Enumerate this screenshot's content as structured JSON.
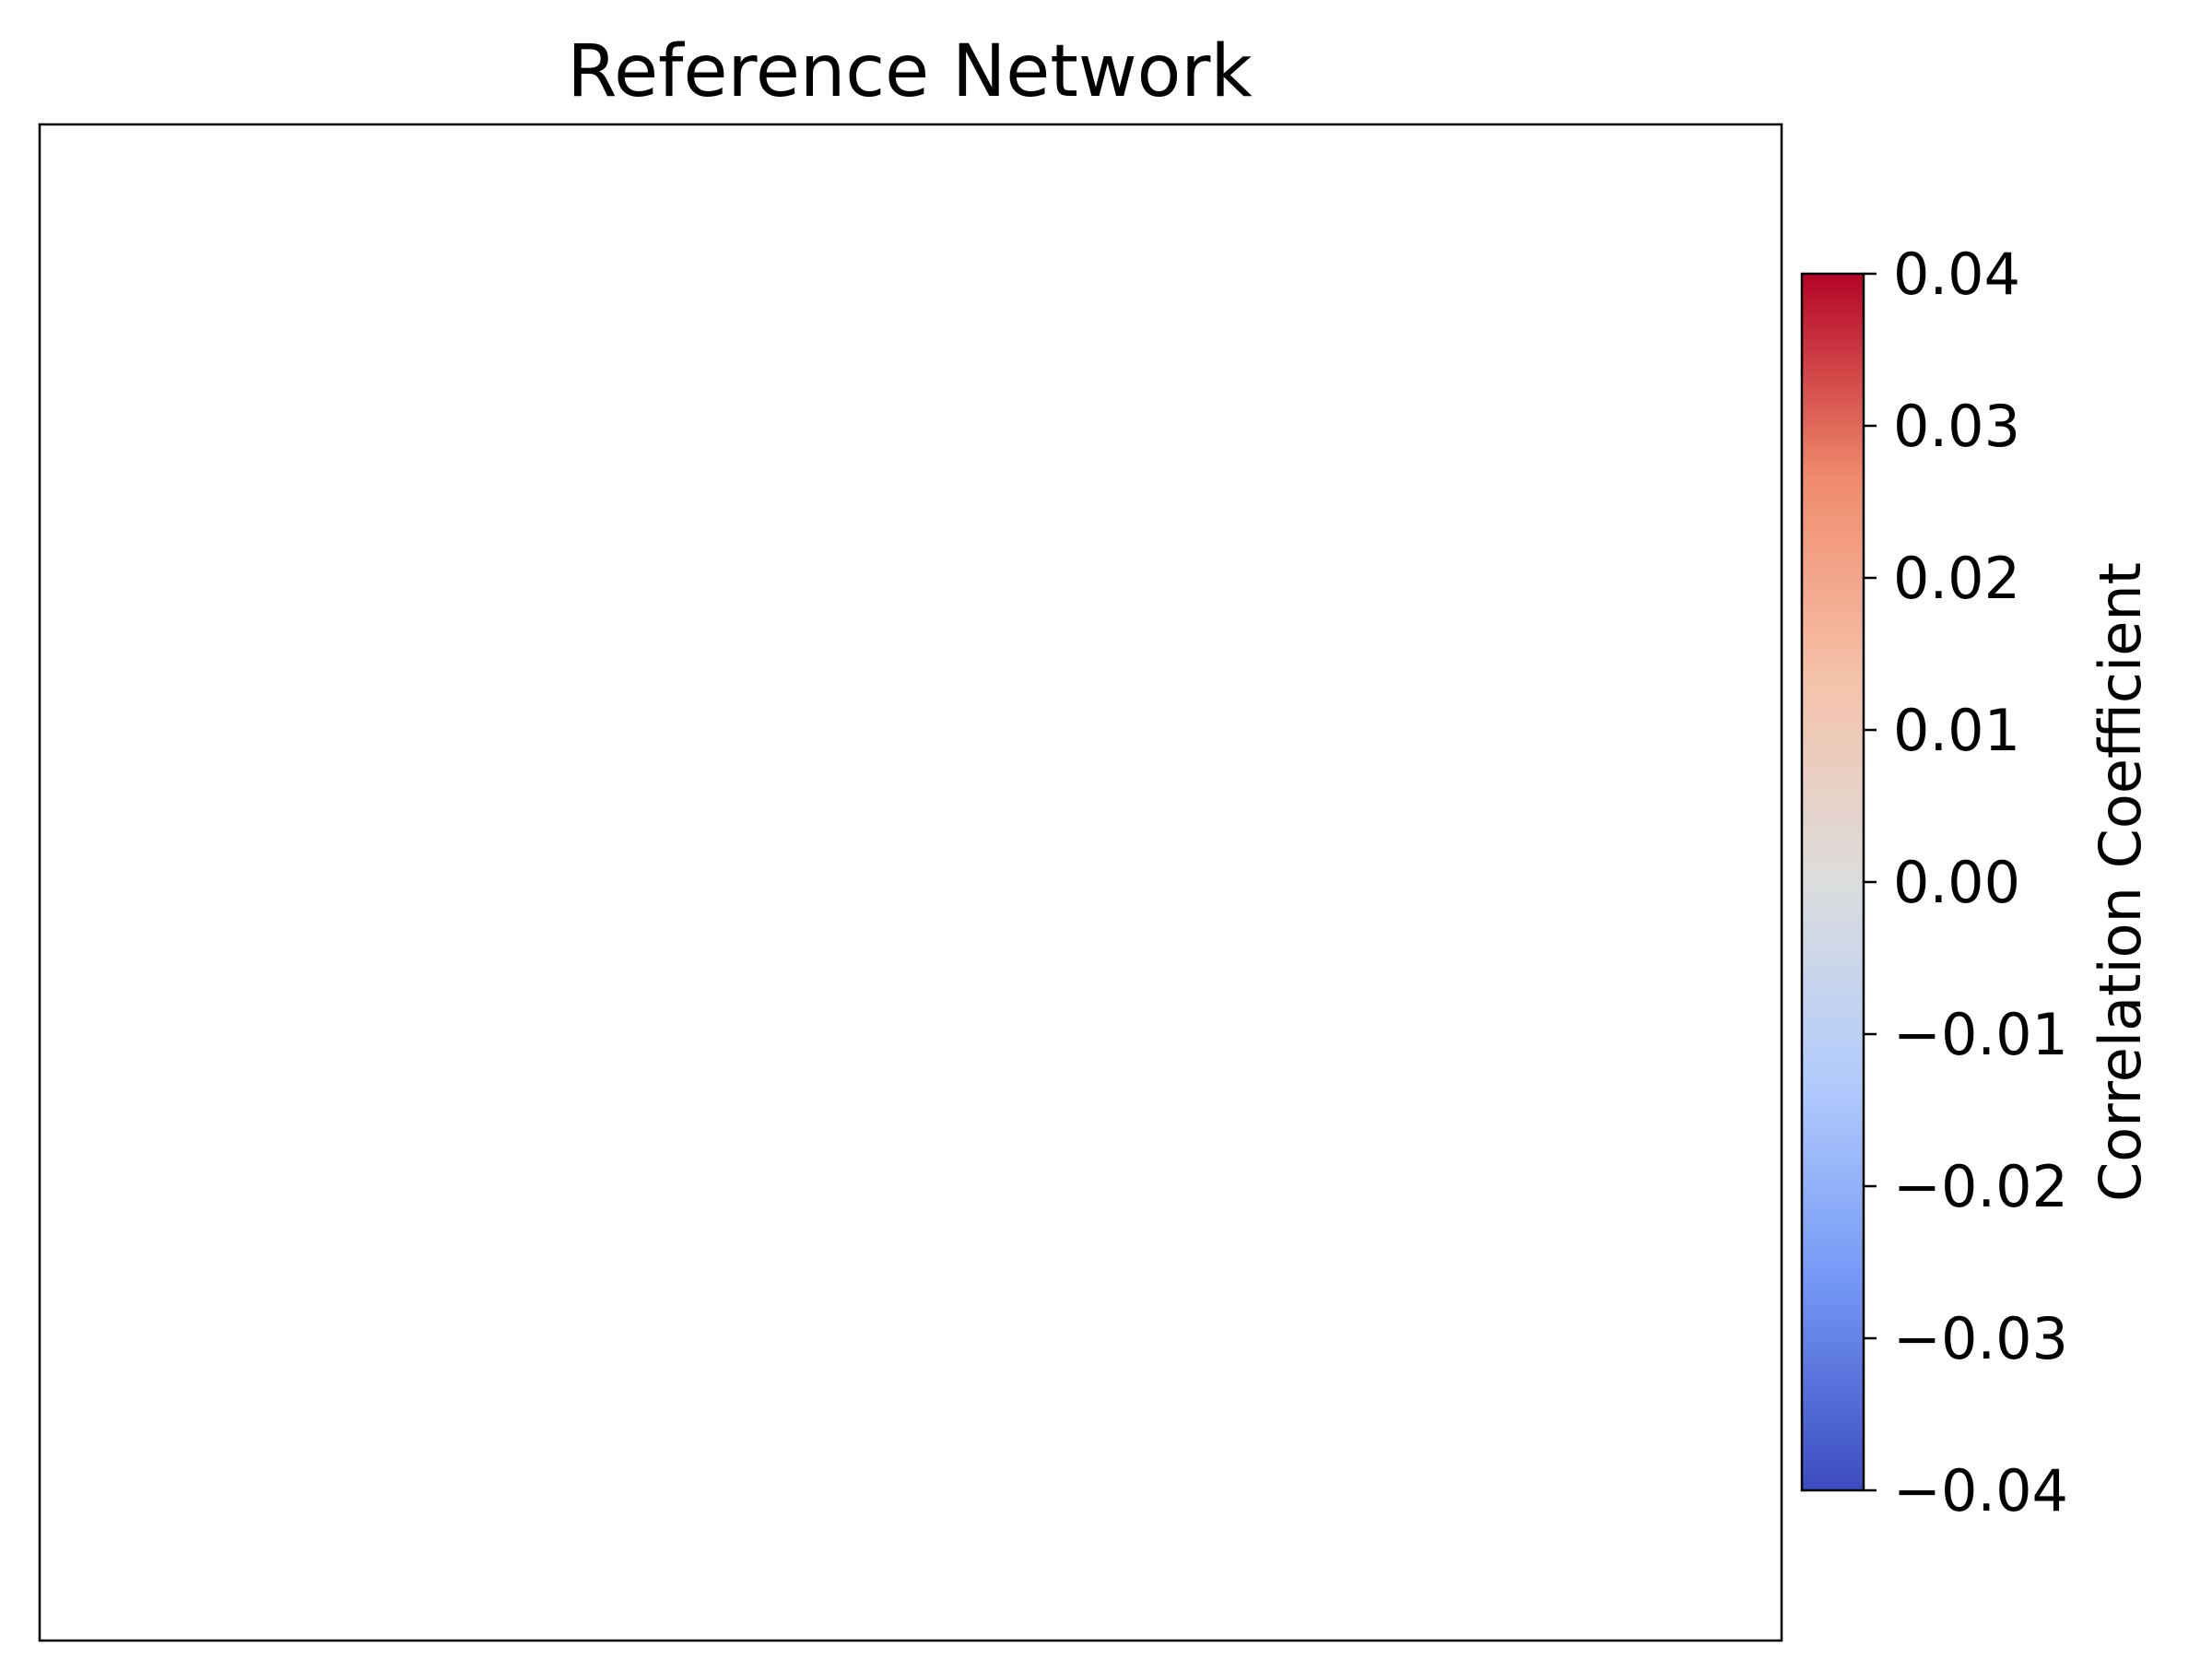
{
  "chart_data": {
    "type": "heatmap",
    "title": "Reference Network",
    "xlabel": "",
    "ylabel": "",
    "values": [],
    "colorbar": {
      "label": "Correlation Coefficient",
      "colormap": "coolwarm",
      "range": [
        -0.04,
        0.04
      ],
      "ticks": [
        0.04,
        0.03,
        0.02,
        0.01,
        0.0,
        -0.01,
        -0.02,
        -0.03,
        -0.04
      ],
      "tick_labels": [
        "0.04",
        "0.03",
        "0.02",
        "0.01",
        "0.00",
        "−0.01",
        "−0.02",
        "−0.03",
        "−0.04"
      ],
      "colors": [
        "#3b4cc0",
        "#7396f5",
        "#b1cbfc",
        "#dcdddd",
        "#f5c2aa",
        "#f08a6c",
        "#b40426"
      ]
    },
    "grid": false,
    "axis_ticks": false
  }
}
